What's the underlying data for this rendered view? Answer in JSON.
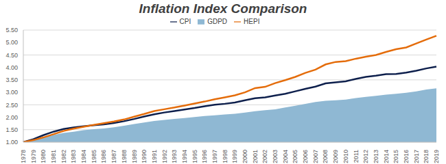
{
  "chart_data": {
    "type": "line",
    "title": "Inflation Index Comparison",
    "categories": [
      "1978",
      "1979",
      "1980",
      "1981",
      "1982",
      "1983",
      "1984",
      "1985",
      "1986",
      "1987",
      "1988",
      "1989",
      "1990",
      "1991",
      "1992",
      "1993",
      "1994",
      "1995",
      "1996",
      "1997",
      "1998",
      "1999",
      "2000",
      "2001",
      "2002",
      "2003",
      "2004",
      "2005",
      "2006",
      "2007",
      "2008",
      "2009",
      "2010",
      "2011",
      "2012",
      "2013",
      "2014",
      "2015",
      "2016",
      "2017",
      "2018",
      "2019"
    ],
    "series": [
      {
        "name": "GDPD",
        "type": "area",
        "color": "#8fb8d3",
        "values": [
          1.0,
          1.08,
          1.18,
          1.29,
          1.37,
          1.42,
          1.48,
          1.52,
          1.55,
          1.6,
          1.66,
          1.73,
          1.79,
          1.85,
          1.89,
          1.93,
          1.97,
          2.01,
          2.05,
          2.08,
          2.11,
          2.14,
          2.19,
          2.24,
          2.28,
          2.32,
          2.39,
          2.46,
          2.54,
          2.61,
          2.66,
          2.68,
          2.71,
          2.77,
          2.82,
          2.86,
          2.91,
          2.94,
          2.98,
          3.04,
          3.11,
          3.16
        ]
      },
      {
        "name": "CPI",
        "type": "line",
        "color": "#0d1f4c",
        "values": [
          1.0,
          1.12,
          1.28,
          1.42,
          1.53,
          1.59,
          1.64,
          1.68,
          1.71,
          1.77,
          1.84,
          1.93,
          2.03,
          2.12,
          2.19,
          2.25,
          2.31,
          2.37,
          2.44,
          2.5,
          2.54,
          2.59,
          2.68,
          2.76,
          2.8,
          2.87,
          2.94,
          3.04,
          3.14,
          3.23,
          3.36,
          3.4,
          3.44,
          3.54,
          3.62,
          3.67,
          3.73,
          3.74,
          3.79,
          3.87,
          3.96,
          4.03
        ]
      },
      {
        "name": "HEPI",
        "type": "line",
        "color": "#e46c0a",
        "values": [
          1.0,
          1.08,
          1.19,
          1.32,
          1.45,
          1.54,
          1.62,
          1.69,
          1.76,
          1.83,
          1.91,
          2.02,
          2.13,
          2.25,
          2.32,
          2.39,
          2.47,
          2.55,
          2.63,
          2.72,
          2.8,
          2.88,
          3.0,
          3.17,
          3.22,
          3.37,
          3.49,
          3.62,
          3.78,
          3.91,
          4.12,
          4.22,
          4.25,
          4.35,
          4.43,
          4.5,
          4.62,
          4.73,
          4.8,
          4.96,
          5.12,
          5.27
        ]
      }
    ],
    "ylim": [
      1,
      5.5
    ],
    "yticks": [
      {
        "value": 1,
        "label": "1.00"
      },
      {
        "value": 1.5,
        "label": "1.50"
      },
      {
        "value": 2,
        "label": "2.00"
      },
      {
        "value": 2.5,
        "label": "2.50"
      },
      {
        "value": 3,
        "label": "3.00"
      },
      {
        "value": 3.5,
        "label": "3.50"
      },
      {
        "value": 4,
        "label": "4.00"
      },
      {
        "value": 4.5,
        "label": "4.50"
      },
      {
        "value": 5,
        "label": "5.00"
      },
      {
        "value": 5.5,
        "label": "5.50"
      }
    ],
    "grid": true,
    "legend": "top"
  }
}
